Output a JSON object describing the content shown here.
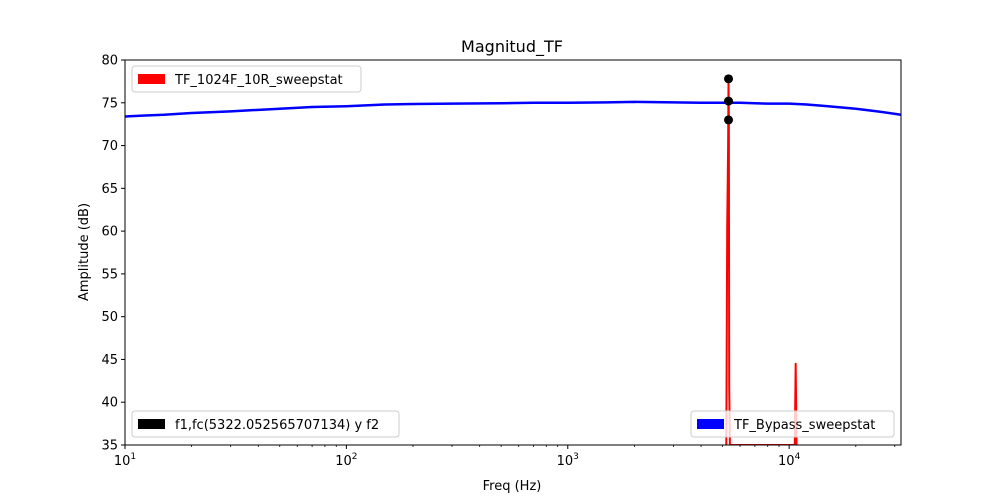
{
  "chart_data": {
    "type": "line",
    "title": "Magnitud_TF",
    "xlabel": "Freq (Hz)",
    "ylabel": "Amplitude (dB)",
    "xscale": "log",
    "xlim": [
      10,
      32000
    ],
    "ylim": [
      35,
      80
    ],
    "grid": false,
    "x_ticks": [
      {
        "value": 10,
        "base": "10",
        "exp": "1"
      },
      {
        "value": 100,
        "base": "10",
        "exp": "2"
      },
      {
        "value": 1000,
        "base": "10",
        "exp": "3"
      },
      {
        "value": 10000,
        "base": "10",
        "exp": "4"
      }
    ],
    "y_ticks": [
      35,
      40,
      45,
      50,
      55,
      60,
      65,
      70,
      75,
      80
    ],
    "series": [
      {
        "name": "TF_Bypass_sweepstat",
        "color": "#0000ff",
        "legend_position": "lower right",
        "x": [
          10,
          12,
          15,
          20,
          30,
          50,
          70,
          100,
          150,
          200,
          300,
          500,
          700,
          1000,
          1500,
          2000,
          3000,
          4000,
          5000,
          6000,
          7000,
          8000,
          10000,
          12000,
          15000,
          20000,
          25000,
          32000
        ],
        "y": [
          73.4,
          73.5,
          73.6,
          73.8,
          74.0,
          74.3,
          74.5,
          74.6,
          74.8,
          74.85,
          74.9,
          74.95,
          75.0,
          75.0,
          75.05,
          75.1,
          75.05,
          75.0,
          75.0,
          75.0,
          74.95,
          74.9,
          74.9,
          74.8,
          74.6,
          74.3,
          74.0,
          73.6
        ]
      },
      {
        "name": "TF_1024F_10R_sweepstat",
        "color": "#ff0000",
        "legend_position": "upper left",
        "x": [
          5200,
          5250,
          5300,
          5322,
          5340,
          5360,
          5400,
          10600,
          10700,
          10800
        ],
        "y": [
          35,
          60.5,
          70,
          77.8,
          73,
          42,
          35,
          35,
          44.5,
          35
        ]
      },
      {
        "name": "f1,fc(5322.052565707134) y f2",
        "color": "#000000",
        "legend_position": "lower left",
        "style": "markers",
        "x": [
          5322.052565707134,
          5322.052565707134,
          5322.052565707134
        ],
        "y": [
          77.8,
          75.2,
          73.0
        ]
      }
    ]
  }
}
